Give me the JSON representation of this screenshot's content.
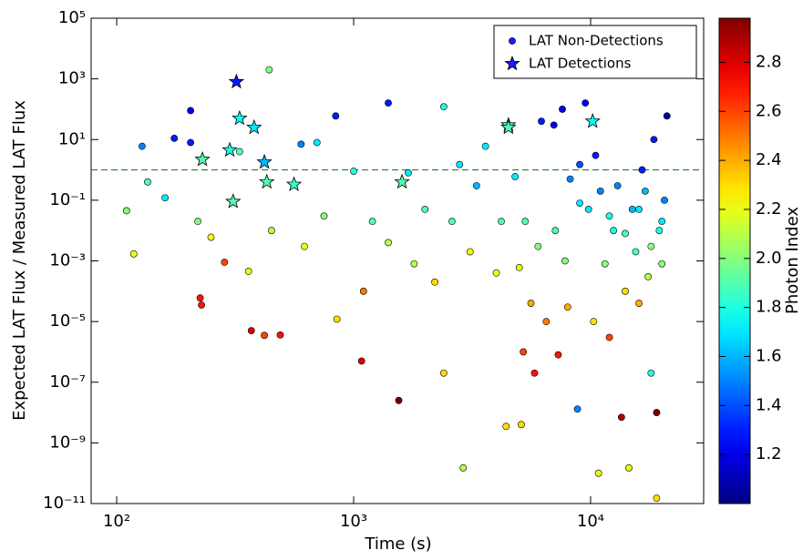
{
  "chart_data": {
    "type": "scatter",
    "x_label": "Time (s)",
    "y_label": "Expected LAT Flux / Measured LAT Flux",
    "x_scale": "log",
    "y_scale": "log",
    "xlim": [
      78,
      30000
    ],
    "xticks": [
      {
        "value": 100,
        "label": "10²"
      },
      {
        "value": 1000,
        "label": "10³"
      },
      {
        "value": 10000,
        "label": "10⁴"
      }
    ],
    "ylim": [
      1e-11,
      100000
    ],
    "yticks": [
      {
        "value": 1e-11,
        "label": "10⁻¹¹"
      },
      {
        "value": 1e-09,
        "label": "10⁻⁹"
      },
      {
        "value": 1e-07,
        "label": "10⁻⁷"
      },
      {
        "value": 1e-05,
        "label": "10⁻⁵"
      },
      {
        "value": 0.001,
        "label": "10⁻³"
      },
      {
        "value": 0.1,
        "label": "10⁻¹"
      },
      {
        "value": 10,
        "label": "10¹"
      },
      {
        "value": 1000,
        "label": "10³"
      },
      {
        "value": 100000,
        "label": "10⁵"
      }
    ],
    "hline": 1,
    "hline_color": "#2e7d32",
    "colormap": "jet",
    "colorbar_label": "Photon Index",
    "clim": [
      1.0,
      2.98
    ],
    "cticks": [
      1.2,
      1.4,
      1.6,
      1.8,
      {
        "value": 2,
        "label": "2.0"
      },
      2.2,
      2.4,
      2.6,
      2.8
    ],
    "legend": "upper right",
    "series": [
      {
        "name": "LAT Non-Detections",
        "marker": "circle",
        "color": "#1a1aff",
        "x": [
          110,
          118,
          128,
          135,
          175,
          160,
          205,
          205,
          220,
          225,
          228,
          250,
          285,
          330,
          360,
          370,
          420,
          440,
          450,
          490,
          600,
          620,
          700,
          750,
          840,
          850,
          1000,
          1080,
          1100,
          1200,
          1400,
          1400,
          1550,
          1700,
          1800,
          2000,
          2200,
          2400,
          2400,
          2600,
          2800,
          2900,
          3100,
          3300,
          3600,
          4000,
          4200,
          4400,
          4800,
          5000,
          5100,
          5200,
          5300,
          5600,
          5800,
          6000,
          6200,
          6500,
          7000,
          7100,
          7300,
          7600,
          7800,
          8000,
          8200,
          8800,
          9000,
          9500,
          9800,
          10300,
          10500,
          10800,
          11000,
          11500,
          12000,
          12500,
          13000,
          13500,
          14000,
          14500,
          15000,
          15500,
          16000,
          16500,
          17000,
          17500,
          18000,
          18500,
          19000,
          19500,
          20000,
          20500,
          21000,
          19000,
          12000,
          14000,
          16000,
          18000,
          20000,
          9000
        ],
        "values": [
          0.045,
          0.0017,
          6,
          0.4,
          11,
          0.12,
          90,
          8,
          0.02,
          6e-05,
          3.5e-05,
          0.006,
          0.0009,
          4,
          0.00045,
          5e-06,
          3.5e-06,
          2000,
          0.01,
          3.6e-06,
          7,
          0.003,
          8,
          0.03,
          60,
          1.2e-05,
          0.9,
          5e-07,
          0.0001,
          0.02,
          160,
          0.004,
          2.5e-08,
          0.8,
          0.0008,
          0.05,
          0.0002,
          120,
          2e-07,
          0.02,
          1.5,
          1.5e-10,
          0.002,
          0.3,
          6,
          0.0004,
          0.02,
          3.5e-09,
          0.6,
          0.0006,
          4e-09,
          1e-06,
          0.02,
          4e-05,
          2e-07,
          0.003,
          40,
          1e-05,
          30,
          0.01,
          8e-07,
          100,
          0.001,
          3e-05,
          0.5,
          1.3e-08,
          1.5,
          160,
          0.05,
          1e-05,
          3,
          1e-10,
          0.2,
          0.0008,
          3e-06,
          0.01,
          0.3,
          7e-09,
          0.0001,
          1.5e-10,
          0.05,
          0.002,
          4e-05,
          1,
          0.2,
          0.0003,
          2e-07,
          10,
          1e-08,
          0.01,
          0.0008,
          0.1,
          60,
          1.5e-11,
          0.03,
          0.008,
          0.05,
          0.003,
          0.02,
          0.08
        ],
        "color_values": [
          2.0,
          2.2,
          1.5,
          1.9,
          1.3,
          1.7,
          1.2,
          1.3,
          2.0,
          2.7,
          2.7,
          2.2,
          2.6,
          1.9,
          2.2,
          2.8,
          2.6,
          2.0,
          2.1,
          2.7,
          1.5,
          2.2,
          1.7,
          2.0,
          1.3,
          2.3,
          1.8,
          2.8,
          2.5,
          1.9,
          1.3,
          2.1,
          3.0,
          1.7,
          2.1,
          1.9,
          2.3,
          1.8,
          2.3,
          1.9,
          1.7,
          2.1,
          2.2,
          1.6,
          1.7,
          2.2,
          1.9,
          2.3,
          1.7,
          2.2,
          2.3,
          2.6,
          1.9,
          2.4,
          2.7,
          2.0,
          1.3,
          2.5,
          1.2,
          1.9,
          2.7,
          1.2,
          2.0,
          2.4,
          1.5,
          1.5,
          1.4,
          1.2,
          1.7,
          2.3,
          1.3,
          2.2,
          1.5,
          2.0,
          2.6,
          1.8,
          1.5,
          2.9,
          2.3,
          2.2,
          1.6,
          1.9,
          2.4,
          1.3,
          1.6,
          2.1,
          1.8,
          1.3,
          3.0,
          1.8,
          2.0,
          1.5,
          1.1,
          2.3,
          1.8,
          1.9,
          1.7,
          2.0,
          1.7,
          1.7
        ]
      },
      {
        "name": "LAT Detections",
        "marker": "star",
        "color": "#1a1aff",
        "x": [
          320,
          330,
          380,
          420,
          300,
          230,
          430,
          310,
          560,
          1600,
          4500,
          4500,
          10200
        ],
        "values": [
          800,
          50,
          25,
          1.8,
          4.5,
          2.2,
          0.4,
          0.09,
          0.33,
          0.4,
          30,
          25,
          40
        ],
        "color_values": [
          1.3,
          1.75,
          1.7,
          1.6,
          1.8,
          1.9,
          1.9,
          1.9,
          1.85,
          1.9,
          1.85,
          1.9,
          1.75
        ]
      }
    ]
  }
}
